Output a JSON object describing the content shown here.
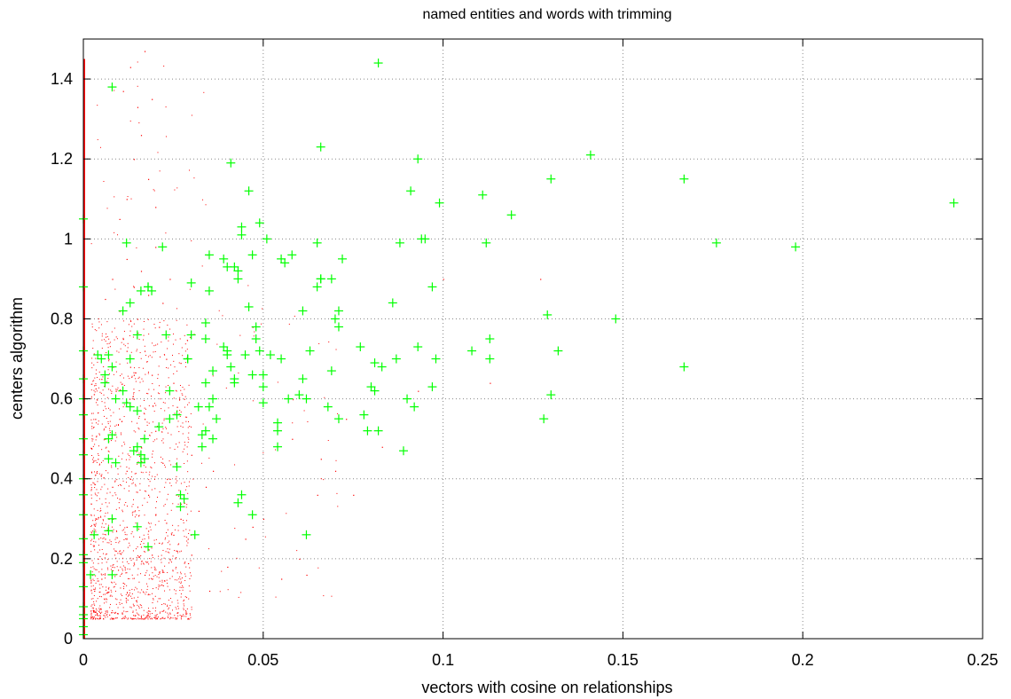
{
  "chart_data": {
    "type": "scatter",
    "title": "named entities and words with trimming",
    "xlabel": "vectors with cosine on relationships",
    "ylabel": "centers algorithm",
    "xlim": [
      0,
      0.25
    ],
    "ylim": [
      0,
      1.5
    ],
    "x_ticks": [
      "0",
      "0.05",
      "0.1",
      "0.15",
      "0.2",
      "0.25"
    ],
    "x_tick_values": [
      0,
      0.05,
      0.1,
      0.15,
      0.2,
      0.25
    ],
    "y_ticks": [
      "0",
      "0.2",
      "0.4",
      "0.6",
      "0.8",
      "1",
      "1.2",
      "1.4"
    ],
    "y_tick_values": [
      0,
      0.2,
      0.4,
      0.6,
      0.8,
      1.0,
      1.2,
      1.4
    ],
    "grid": true,
    "legend": "none",
    "series": [
      {
        "marker": "dot",
        "color": "#ff0000",
        "description_of_density": "dense cloud concentrated near x 0-0.02, y 0.05-0.6, sparse up to y 1.47, plus a solid line of points along x=0",
        "x": [
          0.0,
          0.0,
          0.0,
          0.0,
          0.0,
          0.0,
          0.0,
          0.0,
          0.0,
          0.0,
          0.0,
          0.0,
          0.0,
          0.0,
          0.0,
          0.0,
          0.0,
          0.0,
          0.0,
          0.0,
          0.0,
          0.0,
          0.0,
          0.0,
          0.0,
          0.0,
          0.0,
          0.0,
          0.0,
          0.0,
          0.0,
          0.0,
          0.003,
          0.004,
          0.005,
          0.006,
          0.007,
          0.008,
          0.009,
          0.01,
          0.011,
          0.012,
          0.013,
          0.014,
          0.015,
          0.016,
          0.017,
          0.018,
          0.019,
          0.02,
          0.021,
          0.022,
          0.023,
          0.024,
          0.025,
          0.026,
          0.027,
          0.028,
          0.029,
          0.03,
          0.004,
          0.006,
          0.008,
          0.01,
          0.012,
          0.014,
          0.016,
          0.018,
          0.02,
          0.022,
          0.024,
          0.026,
          0.028,
          0.03,
          0.032,
          0.034,
          0.036,
          0.005,
          0.007,
          0.009,
          0.011,
          0.013,
          0.015,
          0.017,
          0.019,
          0.021,
          0.023,
          0.025,
          0.027,
          0.006,
          0.008,
          0.01,
          0.012,
          0.014,
          0.016,
          0.018,
          0.02,
          0.022,
          0.024,
          0.01,
          0.012,
          0.014,
          0.016,
          0.018,
          0.02,
          0.011,
          0.013,
          0.015,
          0.017,
          0.019,
          0.035,
          0.04,
          0.045,
          0.05,
          0.055,
          0.06,
          0.065,
          0.07,
          0.075,
          0.062,
          0.047,
          0.058,
          0.073,
          0.083,
          0.093,
          0.1,
          0.127,
          0.113,
          0.014,
          0.012,
          0.017,
          0.047,
          0.066,
          0.028,
          0.017
        ],
        "y": [
          0.02,
          0.06,
          0.1,
          0.14,
          0.18,
          0.22,
          0.26,
          0.3,
          0.34,
          0.38,
          0.42,
          0.46,
          0.5,
          0.54,
          0.58,
          0.62,
          0.66,
          0.7,
          0.74,
          0.78,
          0.82,
          0.86,
          0.9,
          0.94,
          0.98,
          1.02,
          1.06,
          1.1,
          1.16,
          1.22,
          1.3,
          1.4,
          0.12,
          0.2,
          0.15,
          0.25,
          0.3,
          0.18,
          0.22,
          0.35,
          0.14,
          0.28,
          0.4,
          0.19,
          0.33,
          0.23,
          0.16,
          0.27,
          0.21,
          0.31,
          0.24,
          0.17,
          0.29,
          0.2,
          0.26,
          0.22,
          0.3,
          0.19,
          0.25,
          0.21,
          0.45,
          0.5,
          0.38,
          0.55,
          0.42,
          0.6,
          0.48,
          0.36,
          0.52,
          0.44,
          0.4,
          0.58,
          0.34,
          0.46,
          0.32,
          0.38,
          0.42,
          0.65,
          0.7,
          0.62,
          0.75,
          0.68,
          0.8,
          0.72,
          0.66,
          0.78,
          0.7,
          0.64,
          0.69,
          0.85,
          0.9,
          0.82,
          0.95,
          0.88,
          0.92,
          0.86,
          0.98,
          0.84,
          0.9,
          1.05,
          1.1,
          1.2,
          1.26,
          1.15,
          1.08,
          1.37,
          1.43,
          1.33,
          1.47,
          1.35,
          0.12,
          0.18,
          0.25,
          0.3,
          0.15,
          0.2,
          0.36,
          0.42,
          0.36,
          0.16,
          0.28,
          0.5,
          0.55,
          0.48,
          0.62,
          0.9,
          0.9,
          0.64,
          0.66,
          0.72,
          0.52,
          0.78,
          0.45,
          0.6,
          0.55
        ]
      },
      {
        "marker": "plus",
        "color": "#00ff00",
        "x": [
          0.0,
          0.0,
          0.0,
          0.0,
          0.0,
          0.0,
          0.0,
          0.0,
          0.0,
          0.0,
          0.0,
          0.0,
          0.0,
          0.0,
          0.0,
          0.0,
          0.0,
          0.0,
          0.0,
          0.0,
          0.008,
          0.004,
          0.005,
          0.007,
          0.008,
          0.006,
          0.006,
          0.009,
          0.007,
          0.008,
          0.007,
          0.009,
          0.008,
          0.007,
          0.002,
          0.003,
          0.008,
          0.012,
          0.013,
          0.011,
          0.011,
          0.012,
          0.013,
          0.014,
          0.015,
          0.016,
          0.016,
          0.017,
          0.018,
          0.018,
          0.019,
          0.015,
          0.013,
          0.015,
          0.017,
          0.015,
          0.018,
          0.016,
          0.022,
          0.023,
          0.024,
          0.024,
          0.021,
          0.026,
          0.026,
          0.027,
          0.027,
          0.028,
          0.029,
          0.029,
          0.03,
          0.03,
          0.031,
          0.032,
          0.033,
          0.034,
          0.035,
          0.035,
          0.036,
          0.036,
          0.037,
          0.034,
          0.034,
          0.035,
          0.036,
          0.034,
          0.033,
          0.039,
          0.039,
          0.04,
          0.04,
          0.04,
          0.041,
          0.041,
          0.042,
          0.042,
          0.042,
          0.043,
          0.043,
          0.044,
          0.044,
          0.045,
          0.046,
          0.046,
          0.047,
          0.047,
          0.048,
          0.048,
          0.049,
          0.049,
          0.05,
          0.05,
          0.05,
          0.051,
          0.052,
          0.044,
          0.043,
          0.047,
          0.054,
          0.054,
          0.054,
          0.055,
          0.055,
          0.056,
          0.057,
          0.058,
          0.06,
          0.061,
          0.061,
          0.062,
          0.063,
          0.065,
          0.065,
          0.066,
          0.066,
          0.068,
          0.069,
          0.069,
          0.07,
          0.071,
          0.071,
          0.071,
          0.072,
          0.066,
          0.062,
          0.077,
          0.078,
          0.079,
          0.08,
          0.081,
          0.081,
          0.082,
          0.082,
          0.083,
          0.086,
          0.087,
          0.088,
          0.089,
          0.09,
          0.091,
          0.092,
          0.093,
          0.093,
          0.094,
          0.095,
          0.097,
          0.097,
          0.098,
          0.099,
          0.108,
          0.111,
          0.112,
          0.113,
          0.113,
          0.119,
          0.128,
          0.129,
          0.13,
          0.13,
          0.132,
          0.141,
          0.148,
          0.167,
          0.167,
          0.176,
          0.198,
          0.242
        ],
        "y": [
          1.05,
          0.88,
          0.72,
          0.65,
          0.6,
          0.56,
          0.5,
          0.46,
          0.4,
          0.36,
          0.31,
          0.25,
          0.21,
          0.19,
          0.13,
          0.08,
          0.06,
          0.05,
          0.03,
          0.01,
          1.38,
          0.71,
          0.7,
          0.71,
          0.68,
          0.66,
          0.64,
          0.6,
          0.5,
          0.51,
          0.45,
          0.44,
          0.3,
          0.27,
          0.16,
          0.26,
          0.16,
          0.99,
          0.84,
          0.82,
          0.62,
          0.59,
          0.58,
          0.47,
          0.48,
          0.46,
          0.44,
          0.45,
          0.88,
          0.88,
          0.87,
          0.76,
          0.7,
          0.57,
          0.5,
          0.28,
          0.23,
          0.87,
          0.98,
          0.76,
          0.62,
          0.55,
          0.53,
          0.56,
          0.43,
          0.36,
          0.33,
          0.35,
          0.7,
          0.7,
          0.89,
          0.76,
          0.26,
          0.58,
          0.51,
          0.75,
          0.96,
          0.58,
          0.6,
          0.5,
          0.55,
          0.64,
          0.79,
          0.87,
          0.67,
          0.52,
          0.48,
          0.95,
          0.73,
          0.72,
          0.93,
          0.71,
          1.19,
          0.68,
          0.93,
          0.64,
          0.65,
          0.92,
          0.9,
          1.03,
          1.01,
          0.71,
          1.12,
          0.83,
          0.66,
          0.96,
          0.75,
          0.78,
          1.04,
          0.72,
          0.63,
          0.59,
          0.66,
          1.0,
          0.71,
          0.36,
          0.34,
          0.31,
          0.48,
          0.52,
          0.54,
          0.7,
          0.95,
          0.94,
          0.6,
          0.96,
          0.61,
          0.82,
          0.65,
          0.26,
          0.72,
          0.99,
          0.88,
          0.9,
          1.23,
          0.58,
          0.9,
          0.67,
          0.8,
          0.78,
          0.82,
          0.55,
          0.95,
          0.9,
          0.6,
          0.73,
          0.56,
          0.52,
          0.63,
          0.69,
          0.62,
          1.44,
          0.52,
          0.68,
          0.84,
          0.7,
          0.99,
          0.47,
          0.6,
          1.12,
          0.58,
          0.73,
          1.2,
          1.0,
          1.0,
          0.63,
          0.88,
          0.7,
          1.09,
          0.72,
          1.11,
          0.99,
          0.7,
          0.75,
          1.06,
          0.55,
          0.81,
          1.15,
          0.61,
          0.72,
          1.21,
          0.8,
          1.15,
          0.68,
          0.99,
          0.98,
          1.09
        ]
      }
    ]
  }
}
